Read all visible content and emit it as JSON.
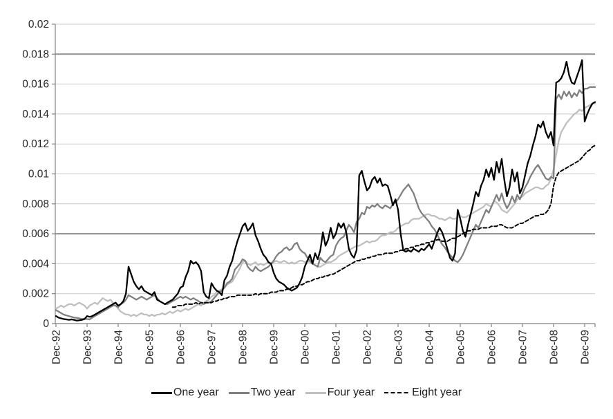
{
  "chart_data": {
    "type": "line",
    "title": "",
    "xlabel": "",
    "ylabel": "",
    "ylim": [
      0,
      0.02
    ],
    "y_major_step": 0.002,
    "grid": "horizontal",
    "emphasized_gridlines": [
      0.018,
      0.006
    ],
    "axis_color": "#808080",
    "gridline_color": "#c9c9c9",
    "emphasized_gridline_color": "#8f8f8f",
    "y_tick_labels": [
      "0",
      "0.002",
      "0.004",
      "0.006",
      "0.008",
      "0.01",
      "0.012",
      "0.014",
      "0.016",
      "0.018",
      "0.02"
    ],
    "x_tick_labels": [
      "Dec-92",
      "Dec-93",
      "Dec-94",
      "Dec-95",
      "Dec-96",
      "Dec-97",
      "Dec-98",
      "Dec-99",
      "Dec-00",
      "Dec-01",
      "Dec-02",
      "Dec-03",
      "Dec-04",
      "Dec-05",
      "Dec-06",
      "Dec-07",
      "Dec-08",
      "Dec-09"
    ],
    "x_tick_step_points": 12,
    "points_total": 209,
    "months_per_point": 1,
    "value_scale": 0.0001,
    "legend_position": "bottom-center",
    "series": [
      {
        "name": "One year",
        "color": "#000000",
        "style": "solid",
        "start_index": 0,
        "values": [
          5,
          4,
          3.5,
          3,
          2.8,
          2.5,
          2.8,
          2.5,
          2,
          2.2,
          2.5,
          3,
          5,
          4.5,
          5,
          6,
          7,
          8,
          9,
          10,
          11,
          12,
          13,
          14,
          12,
          13,
          15,
          20,
          38,
          33,
          28,
          25,
          23,
          25,
          22,
          21,
          20,
          19,
          21,
          16,
          15,
          14,
          13,
          14,
          15,
          16,
          18,
          20,
          24,
          25,
          31,
          35,
          42,
          40,
          41,
          39,
          35,
          21,
          18,
          17,
          27,
          24,
          22,
          21,
          19,
          29,
          32,
          38,
          42,
          49,
          55,
          60,
          65,
          67,
          62,
          64,
          67,
          59,
          55,
          50,
          46,
          44,
          41,
          40,
          34,
          30,
          28,
          27,
          26,
          24,
          23,
          22,
          23,
          24,
          27,
          31,
          38,
          42,
          46,
          40,
          47,
          43,
          49,
          61,
          52,
          56,
          64,
          57,
          60,
          67,
          64,
          67,
          61,
          50,
          46,
          44,
          49,
          99,
          102,
          95,
          89,
          91,
          96,
          98,
          94,
          97,
          92,
          93,
          92,
          86,
          79,
          83,
          76,
          60,
          49,
          48,
          49,
          48,
          50,
          49,
          48,
          50,
          49,
          51,
          53,
          50,
          55,
          60,
          64,
          61,
          56,
          50,
          44,
          42,
          47,
          76,
          70,
          62,
          58,
          66,
          73,
          80,
          88,
          85,
          92,
          96,
          103,
          98,
          104,
          96,
          108,
          101,
          110,
          96,
          85,
          91,
          103,
          95,
          101,
          87,
          91,
          99,
          107,
          112,
          119,
          125,
          133,
          131,
          135,
          128,
          124,
          128,
          119,
          161,
          162,
          164,
          168,
          175,
          166,
          161,
          160,
          165,
          170,
          176,
          135,
          140,
          144,
          147,
          148
        ]
      },
      {
        "name": "Two year",
        "color": "#7f7f7f",
        "style": "solid",
        "start_index": 0,
        "values": [
          9,
          8,
          7,
          6,
          5.5,
          5,
          4.5,
          4,
          3.8,
          3.5,
          3,
          3.2,
          3,
          2.8,
          4,
          5,
          6,
          7,
          8,
          9,
          10,
          11,
          12,
          12,
          11,
          13,
          14,
          16,
          19,
          18,
          17,
          16,
          17,
          18,
          17,
          16,
          17,
          18,
          19,
          17,
          15,
          14,
          13,
          13,
          14,
          15,
          16,
          17,
          18,
          17,
          18,
          17,
          16,
          17,
          16,
          15,
          14,
          13,
          14,
          14,
          15,
          17,
          19,
          21,
          22,
          24,
          27,
          28,
          30,
          36,
          38,
          40,
          43,
          42,
          38,
          36,
          35,
          38,
          36,
          35,
          36,
          37,
          38,
          40,
          42,
          45,
          47,
          48,
          50,
          51,
          49,
          50,
          53,
          54,
          50,
          48,
          47,
          44,
          42,
          40,
          39,
          38,
          44,
          42,
          41,
          43,
          45,
          46,
          52,
          55,
          57,
          58,
          62,
          66,
          64,
          61,
          68,
          70,
          74,
          73,
          78,
          77,
          79,
          78,
          80,
          78,
          77,
          79,
          78,
          77,
          80,
          81,
          83,
          86,
          89,
          91,
          93,
          90,
          87,
          82,
          77,
          74,
          72,
          70,
          68,
          65,
          63,
          60,
          56,
          53,
          51,
          48,
          46,
          44,
          42,
          41,
          43,
          46,
          50,
          54,
          58,
          62,
          66,
          64,
          68,
          72,
          76,
          74,
          78,
          82,
          86,
          82,
          87,
          81,
          77,
          80,
          85,
          81,
          86,
          83,
          87,
          91,
          94,
          98,
          101,
          104,
          106,
          103,
          100,
          97,
          96,
          98,
          97,
          150,
          153,
          150,
          155,
          152,
          155,
          151,
          154,
          152,
          156,
          154,
          157,
          157,
          158,
          158,
          158
        ]
      },
      {
        "name": "Four year",
        "color": "#bfbfbf",
        "style": "solid",
        "start_index": 0,
        "values": [
          10,
          11,
          12,
          11,
          12,
          13,
          13,
          12,
          13,
          14,
          13,
          12,
          10,
          12,
          13,
          14,
          13,
          15,
          17,
          16,
          15,
          16,
          14,
          12,
          10,
          8,
          7,
          6,
          6,
          5,
          6,
          5,
          6,
          7,
          6,
          6,
          5,
          6,
          5,
          6,
          6,
          7,
          6,
          7,
          8,
          7,
          8,
          9,
          8,
          9,
          10,
          9,
          10,
          11,
          12,
          13,
          12,
          14,
          15,
          16,
          18,
          19,
          21,
          22,
          23,
          24,
          26,
          27,
          28,
          31,
          34,
          37,
          41,
          42,
          40,
          39,
          40,
          41,
          39,
          40,
          39,
          40,
          41,
          40,
          41,
          42,
          41,
          41,
          42,
          41,
          40,
          41,
          40,
          41,
          42,
          42,
          41,
          42,
          41,
          40,
          39,
          38,
          38,
          39,
          40,
          41,
          41,
          42,
          43,
          45,
          46,
          47,
          48,
          49,
          50,
          51,
          52,
          52,
          53,
          54,
          55,
          54,
          55,
          55,
          56,
          58,
          59,
          59,
          60,
          61,
          61,
          62,
          64,
          65,
          66,
          67,
          67,
          69,
          70,
          70,
          70,
          71,
          72,
          73,
          73,
          72,
          72,
          71,
          70,
          70,
          69,
          70,
          71,
          70,
          70,
          71,
          72,
          71,
          71,
          72,
          73,
          74,
          75,
          76,
          77,
          78,
          80,
          79,
          78,
          82,
          81,
          79,
          76,
          75,
          74,
          76,
          78,
          80,
          83,
          84,
          85,
          87,
          88,
          89,
          90,
          91,
          91,
          90,
          90,
          92,
          93,
          97,
          103,
          113,
          122,
          128,
          131,
          134,
          136,
          138,
          140,
          141,
          143,
          142,
          144,
          145,
          146,
          147,
          147
        ]
      },
      {
        "name": "Eight year",
        "color": "#000000",
        "style": "dashed",
        "start_index": 45,
        "values": [
          11,
          11,
          12,
          12,
          12,
          13,
          13,
          13,
          13,
          14,
          13,
          14,
          14,
          14,
          14,
          14,
          15,
          15,
          16,
          16,
          17,
          17,
          18,
          18,
          18,
          19,
          19,
          19,
          19,
          19,
          19,
          19,
          20,
          19,
          20,
          20,
          20,
          20,
          21,
          21,
          21,
          22,
          22,
          22,
          23,
          23,
          24,
          25,
          25,
          26,
          26,
          27,
          28,
          28,
          29,
          30,
          30,
          31,
          31,
          32,
          32,
          33,
          33,
          34,
          35,
          36,
          37,
          38,
          39,
          40,
          41,
          42,
          42,
          43,
          43,
          44,
          44,
          45,
          45,
          46,
          46,
          46,
          47,
          47,
          47,
          47,
          48,
          48,
          49,
          49,
          50,
          50,
          51,
          51,
          52,
          52,
          53,
          53,
          54,
          54,
          55,
          55,
          56,
          56,
          55,
          55,
          55,
          56,
          57,
          57,
          58,
          59,
          60,
          61,
          62,
          62,
          63,
          63,
          63,
          64,
          64,
          64,
          64,
          65,
          65,
          65,
          66,
          66,
          65,
          64,
          64,
          64,
          65,
          66,
          67,
          67,
          68,
          69,
          70,
          71,
          72,
          72,
          73,
          73,
          74,
          76,
          80,
          92,
          98,
          101,
          102,
          103,
          104,
          105,
          106,
          107,
          108,
          109,
          111,
          113,
          115,
          116,
          118,
          119
        ]
      }
    ]
  }
}
